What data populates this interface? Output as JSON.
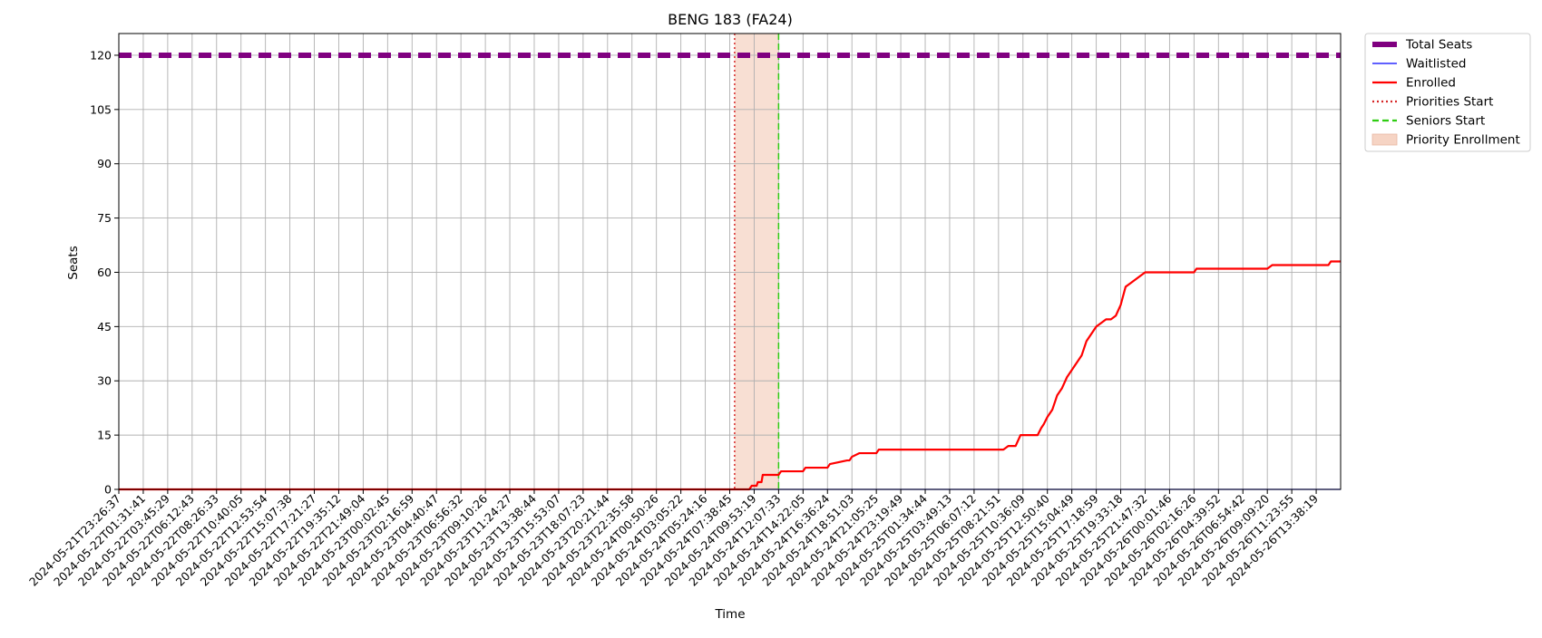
{
  "chart_data": {
    "type": "line",
    "title": "BENG 183 (FA24)",
    "xlabel": "Time",
    "ylabel": "Seats",
    "ylim": [
      0,
      126
    ],
    "yticks": [
      0,
      15,
      30,
      45,
      60,
      75,
      90,
      105,
      120
    ],
    "grid": true,
    "legend_position": "outside-top-right",
    "x_tick_labels": [
      "2024-05-21T23:26:37",
      "2024-05-22T01:31:41",
      "2024-05-22T03:45:29",
      "2024-05-22T06:12:43",
      "2024-05-22T08:26:33",
      "2024-05-22T10:40:05",
      "2024-05-22T12:53:54",
      "2024-05-22T15:07:38",
      "2024-05-22T17:21:27",
      "2024-05-22T19:35:12",
      "2024-05-22T21:49:04",
      "2024-05-23T00:02:45",
      "2024-05-23T02:16:59",
      "2024-05-23T04:40:47",
      "2024-05-23T06:56:32",
      "2024-05-23T09:10:26",
      "2024-05-23T11:24:27",
      "2024-05-23T13:38:44",
      "2024-05-23T15:53:07",
      "2024-05-23T18:07:23",
      "2024-05-23T20:21:44",
      "2024-05-23T22:35:58",
      "2024-05-24T00:50:26",
      "2024-05-24T03:05:22",
      "2024-05-24T05:24:16",
      "2024-05-24T07:38:45",
      "2024-05-24T09:53:19",
      "2024-05-24T12:07:33",
      "2024-05-24T14:22:05",
      "2024-05-24T16:36:24",
      "2024-05-24T18:51:03",
      "2024-05-24T21:05:25",
      "2024-05-24T23:19:49",
      "2024-05-25T01:34:44",
      "2024-05-25T03:49:13",
      "2024-05-25T06:07:12",
      "2024-05-25T08:21:51",
      "2024-05-25T10:36:09",
      "2024-05-25T12:50:40",
      "2024-05-25T15:04:49",
      "2024-05-25T17:18:59",
      "2024-05-25T19:33:18",
      "2024-05-25T21:47:32",
      "2024-05-26T00:01:46",
      "2024-05-26T02:16:26",
      "2024-05-26T04:39:52",
      "2024-05-26T06:54:42",
      "2024-05-26T09:09:20",
      "2024-05-26T11:23:55",
      "2024-05-26T13:38:19"
    ],
    "series": [
      {
        "name": "Total Seats",
        "color": "#800080",
        "style": "dashed-thick",
        "x": [
          0,
          50
        ],
        "values": [
          120,
          120
        ]
      },
      {
        "name": "Waitlisted",
        "color": "#0000ff",
        "style": "solid-thin",
        "x": [
          0,
          50
        ],
        "values": [
          0,
          0
        ]
      },
      {
        "name": "Enrolled",
        "color": "#ff0000",
        "style": "solid",
        "x": [
          0,
          25.2,
          25.8,
          25.9,
          26.1,
          26.15,
          26.3,
          26.35,
          26.6,
          26.65,
          27.0,
          27.1,
          28.0,
          28.1,
          29.0,
          29.1,
          29.8,
          29.9,
          30.0,
          30.3,
          31.0,
          31.1,
          36.2,
          36.4,
          36.7,
          36.9,
          37.6,
          37.75,
          37.85,
          38.0,
          38.2,
          38.4,
          38.6,
          38.8,
          39.0,
          39.2,
          39.4,
          39.6,
          39.8,
          40.0,
          40.2,
          40.4,
          40.6,
          40.8,
          41.0,
          41.2,
          41.4,
          41.6,
          41.8,
          42.0,
          42.2,
          42.5,
          42.7,
          42.9,
          43.0,
          43.2,
          44.0,
          44.1,
          47.0,
          47.2,
          49.5,
          49.6,
          50.0
        ],
        "values": [
          0,
          0,
          0,
          1,
          1,
          2,
          2,
          4,
          4,
          4,
          4,
          5,
          5,
          6,
          6,
          7,
          8,
          8,
          9,
          10,
          10,
          11,
          11,
          12,
          12,
          15,
          15,
          17,
          18,
          20,
          22,
          26,
          28,
          31,
          33,
          35,
          37,
          41,
          43,
          45,
          46,
          47,
          47,
          48,
          51,
          56,
          57,
          58,
          59,
          60,
          60,
          60,
          60,
          60,
          60,
          60,
          60,
          61,
          61,
          62,
          62,
          63,
          63
        ]
      }
    ],
    "markers": [
      {
        "name": "Priorities Start",
        "color": "#d62728",
        "style": "dotted",
        "x": 25.2
      },
      {
        "name": "Seniors Start",
        "color": "#2ecc11",
        "style": "dashed",
        "x": 27.0
      }
    ],
    "spans": [
      {
        "name": "Priority Enrollment",
        "color": "#f6d4c4",
        "x_start": 25.2,
        "x_end": 27.0
      }
    ]
  }
}
